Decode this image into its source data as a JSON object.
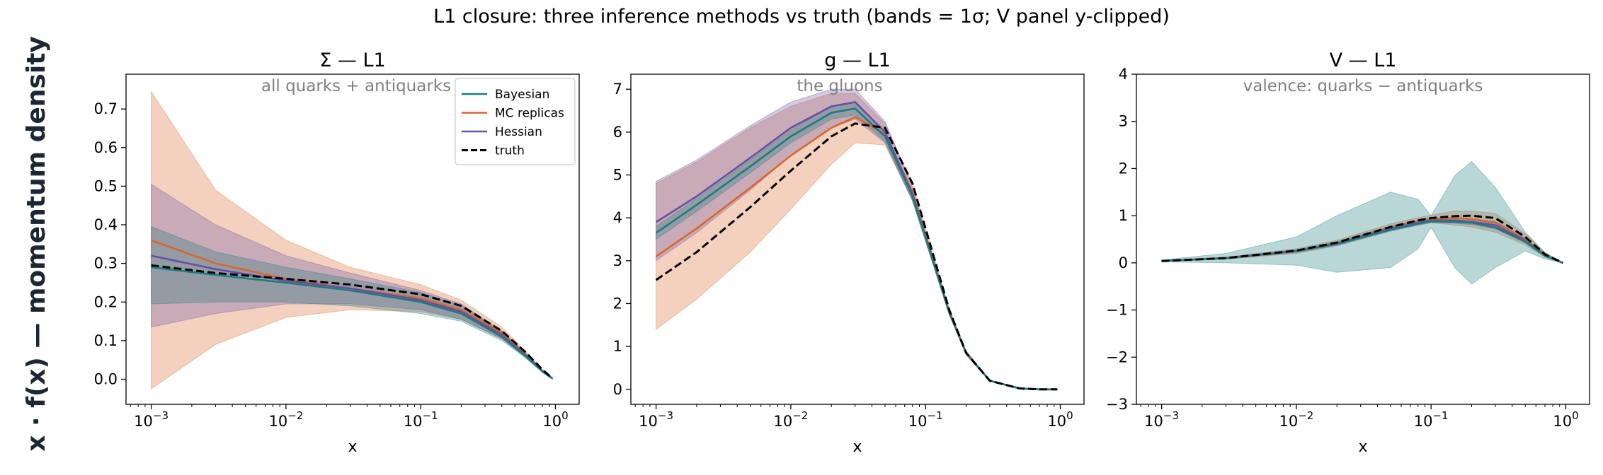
{
  "figure": {
    "suptitle": "L1 closure: three inference methods vs truth (bands = 1σ; V panel y-clipped)",
    "ylabel": "x · f(x)   —   momentum density"
  },
  "colors": {
    "Bayesian": "#1b7c7e",
    "MC replicas": "#d9672c",
    "Hessian": "#6650a6",
    "truth": "#000000"
  },
  "legend": {
    "placement": "upper right of first panel",
    "entries": [
      "Bayesian",
      "MC replicas",
      "Hessian",
      "truth"
    ]
  },
  "chart_data": [
    {
      "type": "line",
      "title": "Σ — L1",
      "subtitle": "all quarks + antiquarks",
      "xlabel": "x",
      "ylabel": "",
      "xscale": "log",
      "xlim": [
        0.00065,
        1.5
      ],
      "ylim": [
        -0.065,
        0.79
      ],
      "yticks": [
        0.0,
        0.1,
        0.2,
        0.3,
        0.4,
        0.5,
        0.6,
        0.7
      ],
      "ytick_labels": [
        "0.0",
        "0.1",
        "0.2",
        "0.3",
        "0.4",
        "0.5",
        "0.6",
        "0.7"
      ],
      "xticks": [
        0.001,
        0.01,
        0.1,
        1
      ],
      "xtick_labels": [
        [
          "10",
          "−3"
        ],
        [
          "10",
          "−2"
        ],
        [
          "10",
          "−1"
        ],
        [
          "10",
          "0"
        ]
      ],
      "x": [
        0.001,
        0.003,
        0.01,
        0.03,
        0.1,
        0.2,
        0.4,
        0.6,
        0.8,
        0.95
      ],
      "series": [
        {
          "name": "Bayesian",
          "values": [
            0.29,
            0.27,
            0.25,
            0.23,
            0.2,
            0.17,
            0.11,
            0.06,
            0.02,
            0.002
          ],
          "lower": [
            0.195,
            0.2,
            0.2,
            0.19,
            0.17,
            0.15,
            0.1,
            0.055,
            0.018,
            0.0
          ],
          "upper": [
            0.395,
            0.33,
            0.29,
            0.26,
            0.225,
            0.19,
            0.125,
            0.068,
            0.024,
            0.004
          ]
        },
        {
          "name": "MC replicas",
          "values": [
            0.36,
            0.3,
            0.26,
            0.235,
            0.21,
            0.18,
            0.12,
            0.065,
            0.022,
            0.002
          ],
          "lower": [
            -0.025,
            0.09,
            0.16,
            0.18,
            0.175,
            0.155,
            0.105,
            0.058,
            0.019,
            0.0
          ],
          "upper": [
            0.745,
            0.49,
            0.36,
            0.29,
            0.245,
            0.205,
            0.135,
            0.072,
            0.025,
            0.004
          ]
        },
        {
          "name": "Hessian",
          "values": [
            0.32,
            0.285,
            0.255,
            0.235,
            0.205,
            0.175,
            0.115,
            0.062,
            0.021,
            0.002
          ],
          "lower": [
            0.135,
            0.17,
            0.195,
            0.195,
            0.18,
            0.155,
            0.105,
            0.056,
            0.018,
            0.0
          ],
          "upper": [
            0.505,
            0.4,
            0.32,
            0.275,
            0.23,
            0.195,
            0.125,
            0.068,
            0.024,
            0.004
          ]
        },
        {
          "name": "truth",
          "values": [
            0.295,
            0.275,
            0.26,
            0.245,
            0.22,
            0.19,
            0.125,
            0.07,
            0.025,
            0.002
          ]
        }
      ]
    },
    {
      "type": "line",
      "title": "g — L1",
      "subtitle": "the gluons",
      "xlabel": "x",
      "ylabel": "",
      "xscale": "log",
      "xlim": [
        0.00065,
        1.5
      ],
      "ylim": [
        -0.35,
        7.35
      ],
      "yticks": [
        0,
        1,
        2,
        3,
        4,
        5,
        6,
        7
      ],
      "ytick_labels": [
        "0",
        "1",
        "2",
        "3",
        "4",
        "5",
        "6",
        "7"
      ],
      "xticks": [
        0.001,
        0.01,
        0.1,
        1
      ],
      "xtick_labels": [
        [
          "10",
          "−3"
        ],
        [
          "10",
          "−2"
        ],
        [
          "10",
          "−1"
        ],
        [
          "10",
          "0"
        ]
      ],
      "x": [
        0.001,
        0.002,
        0.005,
        0.01,
        0.02,
        0.03,
        0.05,
        0.08,
        0.1,
        0.15,
        0.2,
        0.3,
        0.5,
        0.7,
        0.95
      ],
      "series": [
        {
          "name": "Bayesian",
          "values": [
            3.65,
            4.3,
            5.2,
            5.9,
            6.45,
            6.55,
            5.9,
            4.5,
            3.55,
            1.8,
            0.85,
            0.2,
            0.02,
            0.0,
            0.0
          ],
          "lower": [
            3.5,
            4.15,
            5.05,
            5.75,
            6.3,
            6.4,
            5.78,
            4.4,
            3.48,
            1.76,
            0.82,
            0.19,
            0.02,
            0.0,
            0.0
          ],
          "upper": [
            3.8,
            4.45,
            5.35,
            6.05,
            6.6,
            6.7,
            6.02,
            4.6,
            3.62,
            1.84,
            0.88,
            0.21,
            0.02,
            0.0,
            0.0
          ]
        },
        {
          "name": "MC replicas",
          "values": [
            3.1,
            3.75,
            4.7,
            5.45,
            6.1,
            6.35,
            5.95,
            4.6,
            3.6,
            1.8,
            0.85,
            0.2,
            0.02,
            0.0,
            0.0
          ],
          "lower": [
            1.4,
            2.1,
            3.2,
            4.2,
            5.25,
            5.75,
            5.7,
            4.4,
            3.45,
            1.72,
            0.8,
            0.18,
            0.01,
            0.0,
            0.0
          ],
          "upper": [
            4.8,
            5.3,
            6.1,
            6.6,
            6.9,
            6.9,
            6.2,
            4.8,
            3.75,
            1.88,
            0.9,
            0.22,
            0.03,
            0.0,
            0.0
          ]
        },
        {
          "name": "Hessian",
          "values": [
            3.9,
            4.5,
            5.4,
            6.1,
            6.6,
            6.7,
            6.0,
            4.55,
            3.55,
            1.8,
            0.85,
            0.2,
            0.02,
            0.0,
            0.0
          ],
          "lower": [
            3.0,
            3.65,
            4.65,
            5.45,
            6.1,
            6.3,
            5.75,
            4.4,
            3.45,
            1.75,
            0.82,
            0.19,
            0.02,
            0.0,
            0.0
          ],
          "upper": [
            4.85,
            5.35,
            6.15,
            6.7,
            7.0,
            7.0,
            6.25,
            4.7,
            3.65,
            1.85,
            0.88,
            0.21,
            0.02,
            0.0,
            0.0
          ]
        },
        {
          "name": "truth",
          "values": [
            2.55,
            3.2,
            4.25,
            5.1,
            5.9,
            6.2,
            6.1,
            4.8,
            3.75,
            1.85,
            0.85,
            0.2,
            0.02,
            0.0,
            0.0
          ]
        }
      ]
    },
    {
      "type": "line",
      "title": "V — L1",
      "subtitle": "valence: quarks − antiquarks",
      "xlabel": "x",
      "ylabel": "",
      "xscale": "log",
      "xlim": [
        0.00065,
        1.5
      ],
      "ylim": [
        -3,
        4
      ],
      "yticks": [
        -3,
        -2,
        -1,
        0,
        1,
        2,
        3,
        4
      ],
      "ytick_labels": [
        "−3",
        "−2",
        "−1",
        "0",
        "1",
        "2",
        "3",
        "4"
      ],
      "xticks": [
        0.001,
        0.01,
        0.1,
        1
      ],
      "xtick_labels": [
        [
          "10",
          "−3"
        ],
        [
          "10",
          "−2"
        ],
        [
          "10",
          "−1"
        ],
        [
          "10",
          "0"
        ]
      ],
      "x": [
        0.001,
        0.003,
        0.01,
        0.02,
        0.05,
        0.08,
        0.1,
        0.15,
        0.2,
        0.3,
        0.5,
        0.7,
        0.95
      ],
      "series": [
        {
          "name": "Bayesian",
          "values": [
            0.04,
            0.1,
            0.25,
            0.4,
            0.7,
            0.83,
            0.88,
            0.87,
            0.85,
            0.75,
            0.45,
            0.15,
            0.0
          ],
          "lower": [
            0.02,
            0.0,
            -0.05,
            -0.2,
            -0.1,
            0.3,
            0.75,
            -0.1,
            -0.45,
            -0.1,
            0.25,
            0.08,
            0.0
          ],
          "upper": [
            0.06,
            0.2,
            0.55,
            1.0,
            1.5,
            1.35,
            1.0,
            1.85,
            2.15,
            1.6,
            0.65,
            0.22,
            0.0
          ]
        },
        {
          "name": "MC replicas",
          "values": [
            0.04,
            0.1,
            0.25,
            0.42,
            0.75,
            0.88,
            0.93,
            0.95,
            0.93,
            0.85,
            0.5,
            0.17,
            0.0
          ],
          "lower": [
            0.03,
            0.08,
            0.2,
            0.36,
            0.67,
            0.8,
            0.85,
            0.8,
            0.76,
            0.65,
            0.38,
            0.12,
            0.0
          ],
          "upper": [
            0.05,
            0.12,
            0.3,
            0.48,
            0.83,
            0.96,
            1.01,
            1.1,
            1.1,
            1.05,
            0.62,
            0.22,
            0.0
          ]
        },
        {
          "name": "Hessian",
          "values": [
            0.04,
            0.1,
            0.25,
            0.41,
            0.73,
            0.85,
            0.9,
            0.9,
            0.87,
            0.8,
            0.47,
            0.16,
            0.0
          ],
          "lower": [
            0.03,
            0.08,
            0.22,
            0.37,
            0.68,
            0.8,
            0.85,
            0.84,
            0.81,
            0.72,
            0.42,
            0.13,
            0.0
          ],
          "upper": [
            0.05,
            0.12,
            0.28,
            0.45,
            0.78,
            0.9,
            0.95,
            0.96,
            0.93,
            0.88,
            0.52,
            0.19,
            0.0
          ]
        },
        {
          "name": "truth",
          "values": [
            0.04,
            0.1,
            0.26,
            0.43,
            0.76,
            0.9,
            0.95,
            0.99,
            1.0,
            0.95,
            0.55,
            0.18,
            0.0
          ]
        }
      ]
    }
  ]
}
